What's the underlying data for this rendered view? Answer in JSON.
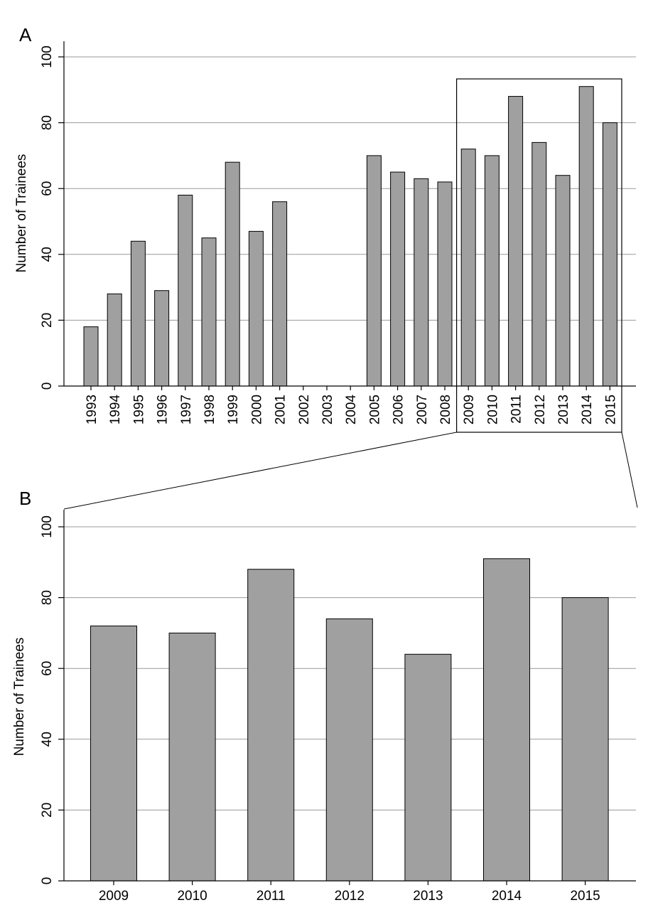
{
  "chart_data": [
    {
      "panel": "A",
      "type": "bar",
      "categories": [
        "1993",
        "1994",
        "1995",
        "1996",
        "1997",
        "1998",
        "1999",
        "2000",
        "2001",
        "2002",
        "2003",
        "2004",
        "2005",
        "2006",
        "2007",
        "2008",
        "2009",
        "2010",
        "2011",
        "2012",
        "2013",
        "2014",
        "2015"
      ],
      "values": [
        18,
        28,
        44,
        29,
        58,
        45,
        68,
        47,
        56,
        null,
        null,
        null,
        70,
        65,
        63,
        62,
        72,
        70,
        88,
        74,
        64,
        91,
        80
      ],
      "ylabel": "Number of Trainees",
      "yticks": [
        0,
        20,
        40,
        60,
        80,
        100
      ],
      "ylim": [
        0,
        100
      ],
      "grid": true,
      "bar_color": "#a0a0a0",
      "highlight_range": [
        "2009",
        "2015"
      ]
    },
    {
      "panel": "B",
      "type": "bar",
      "categories": [
        "2009",
        "2010",
        "2011",
        "2012",
        "2013",
        "2014",
        "2015"
      ],
      "values": [
        72,
        70,
        88,
        74,
        64,
        91,
        80
      ],
      "ylabel": "Number of Trainees",
      "yticks": [
        0,
        20,
        40,
        60,
        80,
        100
      ],
      "ylim": [
        0,
        100
      ],
      "grid": true,
      "bar_color": "#a0a0a0"
    }
  ]
}
